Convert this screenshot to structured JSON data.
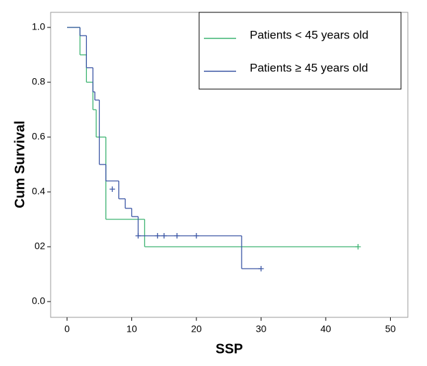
{
  "chart_data": {
    "type": "km",
    "xlabel": "SSP",
    "ylabel": "Cum Survival",
    "xlim": [
      -2.54,
      52.7
    ],
    "xticks": [
      0,
      10,
      20,
      30,
      40,
      50
    ],
    "ylim": [
      -0.0575,
      1.055
    ],
    "yticks": [
      {
        "value": 0,
        "label": "0.0"
      },
      {
        "value": 0.2,
        "label": "02"
      },
      0.4,
      0.6,
      0.8,
      {
        "value": 1,
        "label": "1.0"
      }
    ],
    "series": [
      {
        "name": "Patients < 45 years old",
        "color": "#3cb371",
        "x": [
          0,
          2,
          3,
          4,
          4.5,
          6,
          12,
          45
        ],
        "values": [
          1,
          0.9,
          0.8,
          0.7,
          0.6,
          0.3,
          0.2,
          0.2
        ],
        "censor_x": [
          45
        ],
        "censor_values": [
          0.2
        ]
      },
      {
        "name": "Patients ≥ 45 years old",
        "color": "#3a55a4",
        "x": [
          0,
          2,
          3,
          4,
          4.3,
          5,
          6,
          8,
          9,
          10,
          11,
          27,
          30
        ],
        "values": [
          1,
          0.97,
          0.853,
          0.765,
          0.735,
          0.5,
          0.44,
          0.375,
          0.34,
          0.31,
          0.24,
          0.12,
          0.12
        ],
        "censor_x": [
          7,
          11,
          14,
          15,
          17,
          20,
          30
        ],
        "censor_values": [
          0.41,
          0.24,
          0.24,
          0.24,
          0.24,
          0.24,
          0.12
        ]
      }
    ]
  }
}
